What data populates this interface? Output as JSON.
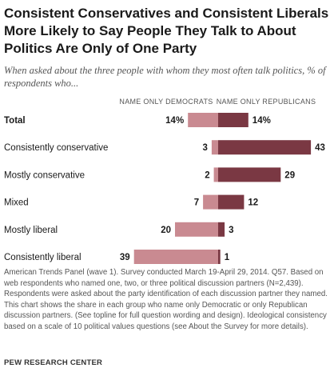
{
  "title": "Consistent Conservatives and Consistent Liberals More Likely to Say People They Talk to About Politics Are Only of One Party",
  "subtitle": "When asked about the three people with whom they most often talk politics, % of respondents who...",
  "note": "American Trends Panel (wave 1). Survey conducted March 19-April 29, 2014. Q57. Based on web respondents who named one, two, or three political discussion partners (N=2,439). Respondents were asked about the party identification of each discussion partner they named. This chart shows the share in each group who name only Democratic or only Republican discussion partners. (See topline for full question wording and design). Ideological consistency based on a scale of 10 political values questions (see About the Survey for more details).",
  "source": "PEW RESEARCH CENTER",
  "colors": {
    "democrats": "#c98a91",
    "republicans": "#7a3843",
    "text": "#1a1a1a",
    "header": "#555555"
  },
  "chart_data": {
    "type": "bar",
    "orientation": "horizontal-diverging",
    "categories": [
      "Total",
      "Consistently conservative",
      "Mostly conservative",
      "Mixed",
      "Mostly liberal",
      "Consistently liberal"
    ],
    "series": [
      {
        "name": "NAME ONLY DEMOCRATS",
        "values": [
          14,
          3,
          2,
          7,
          20,
          39
        ],
        "labels": [
          "14%",
          "3",
          "2",
          "7",
          "20",
          "39"
        ]
      },
      {
        "name": "NAME ONLY REPUBLICANS",
        "values": [
          14,
          43,
          29,
          12,
          3,
          1
        ],
        "labels": [
          "14%",
          "43",
          "29",
          "12",
          "3",
          "1"
        ]
      }
    ],
    "bold_categories": [
      "Total"
    ]
  }
}
